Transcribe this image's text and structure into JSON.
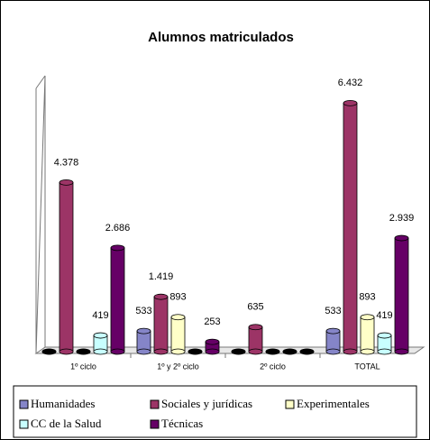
{
  "chart_data": {
    "type": "bar3d",
    "title": "Alumnos matriculados",
    "categories": [
      "1º ciclo",
      "1º y 2º ciclo",
      "2º ciclo",
      "TOTAL"
    ],
    "series": [
      {
        "name": "Humanidades",
        "color": "#8585c8",
        "values": [
          0,
          533,
          0,
          533
        ],
        "value_labels": [
          null,
          "533",
          null,
          "533"
        ]
      },
      {
        "name": "Sociales y jurídicas",
        "color": "#9c3466",
        "values": [
          4378,
          1419,
          635,
          6432
        ],
        "value_labels": [
          "4.378",
          "1.419",
          "635",
          "6.432"
        ]
      },
      {
        "name": "Experimentales",
        "color": "#ffffc8",
        "values": [
          0,
          893,
          0,
          893
        ],
        "value_labels": [
          null,
          "893",
          null,
          "893"
        ]
      },
      {
        "name": "CC de la Salud",
        "color": "#c8ffff",
        "values": [
          419,
          0,
          0,
          419
        ],
        "value_labels": [
          "419",
          null,
          null,
          "419"
        ]
      },
      {
        "name": "Técnicas",
        "color": "#660066",
        "values": [
          2686,
          253,
          0,
          2939
        ],
        "value_labels": [
          "2.686",
          "253",
          null,
          "2.939"
        ]
      }
    ],
    "ylim": [
      0,
      7000
    ]
  }
}
